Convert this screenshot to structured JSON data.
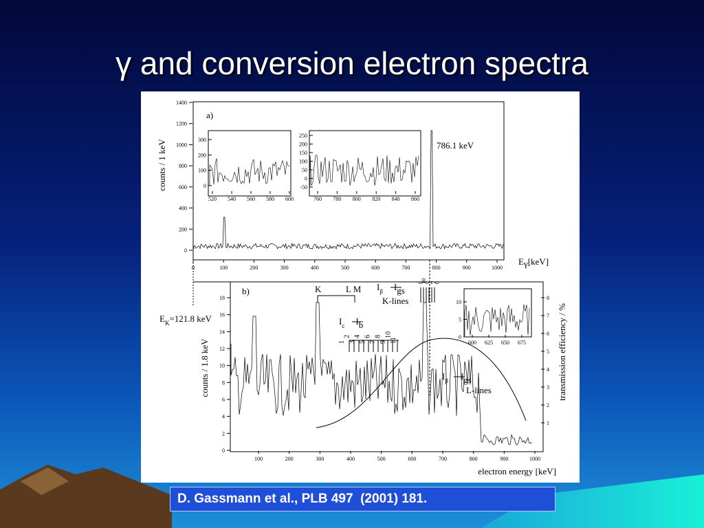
{
  "title": "γ and conversion electron spectra",
  "figure": {
    "panel_a": {
      "label": "a)",
      "y_label": "counts / 1 keV",
      "x_label": "E",
      "x_label_sub": "γ",
      "x_label_unit": "[keV]",
      "peak_label": "786.1 keV",
      "y_ticks": [
        0,
        200,
        400,
        600,
        800,
        1000,
        1200,
        1400
      ],
      "x_ticks": [
        0,
        100,
        200,
        300,
        400,
        500,
        600,
        700,
        800,
        900,
        1000
      ],
      "inset_left": {
        "y_ticks": [
          0,
          100,
          200,
          300
        ],
        "x_ticks": [
          520,
          540,
          560,
          580,
          600
        ]
      },
      "inset_right": {
        "y_ticks": [
          -50,
          0,
          50,
          100,
          150,
          200,
          250
        ],
        "x_ticks": [
          760,
          780,
          800,
          820,
          840,
          860
        ]
      }
    },
    "panel_b": {
      "label": "b)",
      "y_label": "counts / 1.8 keV",
      "y2_label": "transmission efficiency / %",
      "x_label": "electron energy [keV]",
      "k_label": "K",
      "lm_label": "L M",
      "ek": {
        "main": "E",
        "sub": "K",
        "value": "=121.8 keV"
      },
      "k_transition": {
        "from": "I",
        "from_sub": "β",
        "to": "I",
        "to_sub": "gs",
        "lines": "K-lines"
      },
      "c_transition": {
        "from": "I",
        "from_sub": "c",
        "to": "I",
        "to_sub": "b"
      },
      "l_transition": {
        "from": "I",
        "from_sub": "β",
        "to": "I",
        "to_sub": "gs",
        "lines": "L-lines"
      },
      "c_line_numbers": [
        "1",
        "2",
        "3",
        "4",
        "5",
        "6",
        "7",
        "8",
        "9",
        "10",
        "11"
      ],
      "k_line_numbers": [
        "8",
        "10",
        "6",
        "4",
        "2",
        "0"
      ],
      "y_ticks": [
        0,
        2,
        4,
        6,
        8,
        10,
        12,
        14,
        16,
        18
      ],
      "x_ticks": [
        100,
        200,
        300,
        400,
        500,
        600,
        700,
        800,
        900,
        1000
      ],
      "y2_ticks": [
        1,
        2,
        3,
        4,
        5,
        6,
        7,
        8
      ],
      "inset": {
        "y_ticks": [
          0,
          5,
          10
        ],
        "x_ticks": [
          600,
          625,
          650,
          675
        ]
      }
    }
  },
  "caption": "D. Gassmann et al., PLB 497  (2001) 181."
}
